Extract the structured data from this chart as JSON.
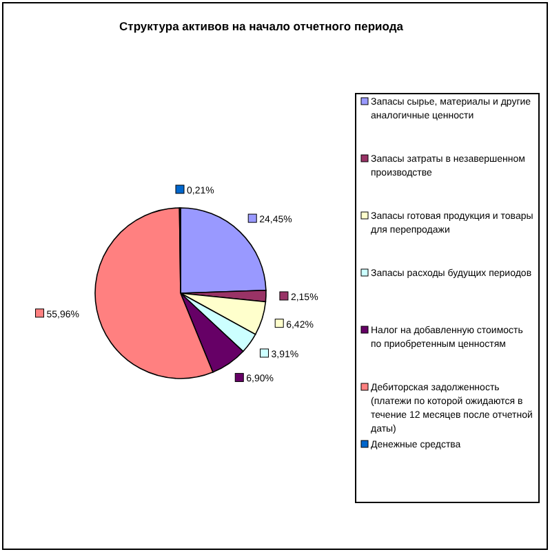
{
  "chart_data": {
    "type": "pie",
    "title": "Структура активов на начало отчетного периода",
    "categories": [
      "Запасы сырье, материалы и другие аналогичные ценности",
      "Запасы затраты в незавершенном производстве",
      "Запасы готовая продукция и товары для перепродажи",
      "Запасы расходы будущих периодов",
      "Налог на добавленную стоимость по приобретенным ценностям",
      "Дебиторская задолженность (платежи по которой ожидаются в течение 12 месяцев после отчетной даты)",
      "Денежные средства"
    ],
    "values": [
      24.45,
      2.15,
      6.42,
      3.91,
      6.9,
      55.96,
      0.21
    ],
    "value_labels": [
      "24,45%",
      "2,15%",
      "6,42%",
      "3,91%",
      "6,90%",
      "55,96%",
      "0,21%"
    ],
    "colors": [
      "#9999ff",
      "#993366",
      "#ffffcc",
      "#ccffff",
      "#660066",
      "#ff8080",
      "#0066cc"
    ],
    "legend": "right"
  }
}
